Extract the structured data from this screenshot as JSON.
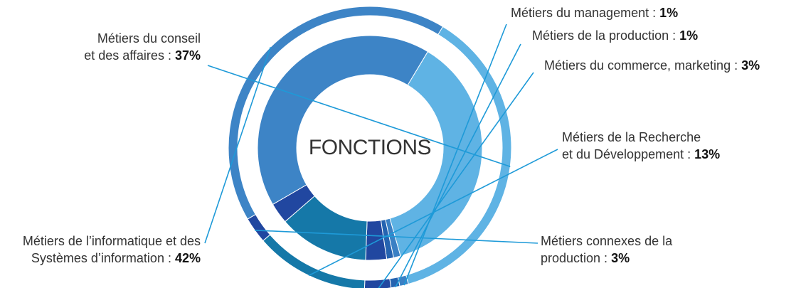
{
  "chart_data": {
    "type": "donut",
    "title": "FONCTIONS",
    "slices": [
      {
        "name_lines": [
          "Métiers du conseil",
          "et des affaires :"
        ],
        "pct_label": "37%",
        "value": 37,
        "color": "#5fb3e4"
      },
      {
        "name_lines": [
          "Métiers du management :"
        ],
        "pct_label": "1%",
        "value": 1,
        "color": "#3a80c4"
      },
      {
        "name_lines": [
          "Métiers de la production :"
        ],
        "pct_label": "1%",
        "value": 1,
        "color": "#2563b0"
      },
      {
        "name_lines": [
          "Métiers du commerce, marketing :"
        ],
        "pct_label": "3%",
        "value": 3,
        "color": "#2147a0"
      },
      {
        "name_lines": [
          "Métiers de la Recherche",
          "et du Développement :"
        ],
        "pct_label": "13%",
        "value": 13,
        "color": "#1578a8"
      },
      {
        "name_lines": [
          "Métiers connexes de la",
          "production :"
        ],
        "pct_label": "3%",
        "value": 3,
        "color": "#2147a0"
      },
      {
        "name_lines": [
          "Métiers de l’informatique et des",
          "Systèmes d’information :"
        ],
        "pct_label": "42%",
        "value": 42,
        "color": "#3d84c6"
      }
    ]
  }
}
